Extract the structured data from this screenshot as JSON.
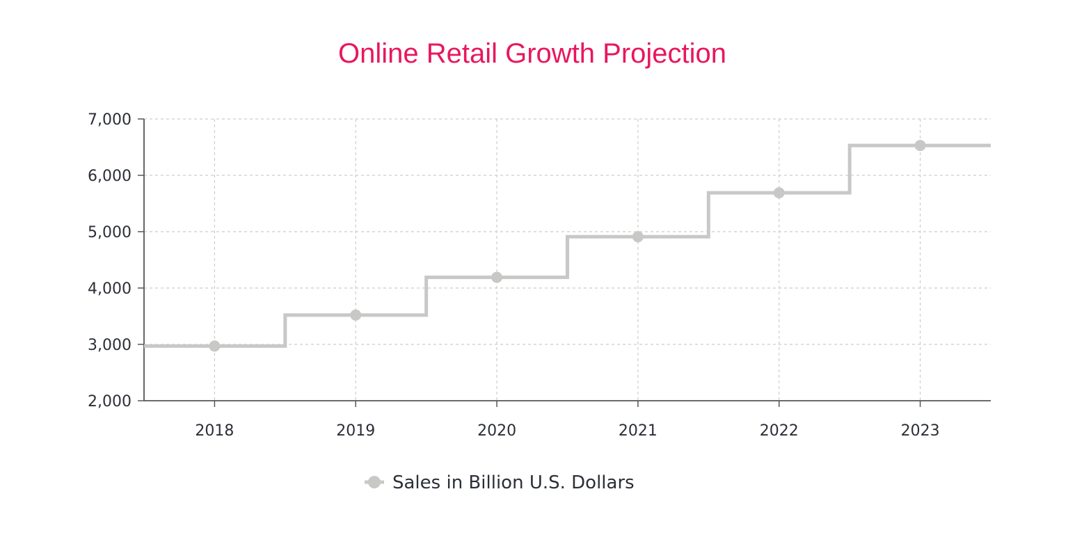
{
  "chart_data": {
    "type": "line",
    "step": "mid",
    "title": "Online Retail Growth Projection",
    "xlabel": "",
    "ylabel": "",
    "categories": [
      "2018",
      "2019",
      "2020",
      "2021",
      "2022",
      "2023"
    ],
    "series": [
      {
        "name": "Sales in Billion U.S. Dollars",
        "values": [
          2970,
          3520,
          4190,
          4910,
          5690,
          6530
        ],
        "color": "#c8c8c6"
      }
    ],
    "ylim": [
      2000,
      7000
    ],
    "yticks": [
      "2,000",
      "3,000",
      "4,000",
      "5,000",
      "6,000",
      "7,000"
    ],
    "grid": true,
    "legend": "bottom-center",
    "colors": {
      "title": "#e8175d",
      "grid": "#cccccc",
      "axis": "#555555",
      "text": "#2b2f36"
    }
  }
}
